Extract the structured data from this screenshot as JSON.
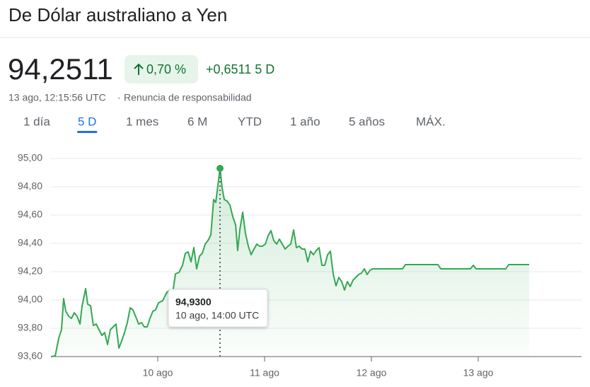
{
  "header": {
    "title": "De Dólar australiano a Yen",
    "price": "94,2511",
    "change_percent": "0,70 %",
    "change_period": "+0,6511 5 D",
    "timestamp": "13 ago, 12:15:56 UTC",
    "disclaimer": "Renuncia de responsabilidad"
  },
  "tabs": {
    "items": [
      "1 día",
      "5 D",
      "1 mes",
      "6 M",
      "YTD",
      "1 año",
      "5 años",
      "MÁX."
    ],
    "selected": 1
  },
  "chart_data": {
    "type": "line",
    "color": "#34a853",
    "grid": true,
    "x": [
      9.0,
      9.04,
      9.073,
      9.099,
      9.119,
      9.139,
      9.166,
      9.192,
      9.219,
      9.245,
      9.272,
      9.291,
      9.325,
      9.344,
      9.371,
      9.397,
      9.424,
      9.45,
      9.477,
      9.503,
      9.53,
      9.556,
      9.583,
      9.609,
      9.636,
      9.662,
      9.689,
      9.715,
      9.742,
      9.768,
      9.795,
      9.821,
      9.848,
      9.874,
      9.901,
      9.927,
      9.954,
      9.98,
      10.007,
      10.046,
      10.086,
      10.113,
      10.139,
      10.166,
      10.199,
      10.232,
      10.258,
      10.285,
      10.311,
      10.338,
      10.364,
      10.391,
      10.417,
      10.444,
      10.47,
      10.497,
      10.523,
      10.543,
      10.583,
      10.603,
      10.623,
      10.649,
      10.676,
      10.702,
      10.729,
      10.748,
      10.768,
      10.795,
      10.821,
      10.848,
      10.874,
      10.901,
      10.927,
      10.954,
      10.98,
      11.007,
      11.033,
      11.06,
      11.086,
      11.113,
      11.139,
      11.166,
      11.192,
      11.219,
      11.245,
      11.272,
      11.298,
      11.325,
      11.351,
      11.378,
      11.404,
      11.431,
      11.457,
      11.484,
      11.51,
      11.537,
      11.563,
      11.59,
      11.616,
      11.643,
      11.669,
      11.695,
      11.722,
      11.748,
      11.775,
      11.801,
      11.828,
      11.854,
      11.881,
      11.907,
      11.934,
      11.96,
      11.987,
      12.013,
      12.292,
      12.318,
      12.623,
      12.649,
      12.927,
      12.954,
      12.98,
      13.258,
      13.285,
      13.477
    ],
    "values": [
      93.6,
      93.605,
      93.73,
      93.79,
      94.01,
      93.92,
      93.885,
      93.87,
      93.91,
      93.885,
      93.83,
      93.955,
      94.08,
      93.97,
      93.96,
      93.82,
      93.83,
      93.79,
      93.75,
      93.77,
      93.685,
      93.79,
      93.81,
      93.83,
      93.66,
      93.71,
      93.77,
      93.84,
      93.945,
      93.93,
      93.88,
      93.83,
      93.84,
      93.81,
      93.81,
      93.87,
      93.92,
      93.93,
      93.98,
      93.995,
      94.055,
      94.07,
      94.045,
      94.185,
      94.195,
      94.245,
      94.33,
      94.34,
      94.27,
      94.37,
      94.22,
      94.31,
      94.33,
      94.395,
      94.42,
      94.46,
      94.71,
      94.69,
      94.93,
      94.79,
      94.71,
      94.7,
      94.67,
      94.59,
      94.53,
      94.35,
      94.495,
      94.62,
      94.47,
      94.38,
      94.32,
      94.36,
      94.395,
      94.38,
      94.38,
      94.395,
      94.455,
      94.49,
      94.42,
      94.395,
      94.43,
      94.395,
      94.36,
      94.38,
      94.395,
      94.495,
      94.37,
      94.38,
      94.36,
      94.36,
      94.27,
      94.345,
      94.32,
      94.35,
      94.37,
      94.245,
      94.245,
      94.32,
      94.345,
      94.18,
      94.1,
      94.16,
      94.13,
      94.07,
      94.13,
      94.095,
      94.14,
      94.16,
      94.18,
      94.19,
      94.22,
      94.18,
      94.21,
      94.22,
      94.22,
      94.25,
      94.25,
      94.22,
      94.22,
      94.245,
      94.22,
      94.22,
      94.25,
      94.25
    ],
    "xlim": [
      9,
      14
    ],
    "xticks": [
      {
        "value": 10,
        "label": "10 ago"
      },
      {
        "value": 11,
        "label": "11 ago"
      },
      {
        "value": 12,
        "label": "12 ago"
      },
      {
        "value": 13,
        "label": "13 ago"
      }
    ],
    "ylim": [
      93.6,
      95.0
    ],
    "yticks": [
      {
        "value": 93.6,
        "label": "93,60"
      },
      {
        "value": 93.8,
        "label": "93,80"
      },
      {
        "value": 94.0,
        "label": "94,00"
      },
      {
        "value": 94.2,
        "label": "94,20"
      },
      {
        "value": 94.4,
        "label": "94,40"
      },
      {
        "value": 94.6,
        "label": "94,60"
      },
      {
        "value": 94.8,
        "label": "94,80"
      },
      {
        "value": 95.0,
        "label": "95,00"
      }
    ],
    "highlight": {
      "x": 10.583,
      "value": 94.93,
      "label": "94,9300",
      "time": "10 ago, 14:00 UTC"
    }
  }
}
